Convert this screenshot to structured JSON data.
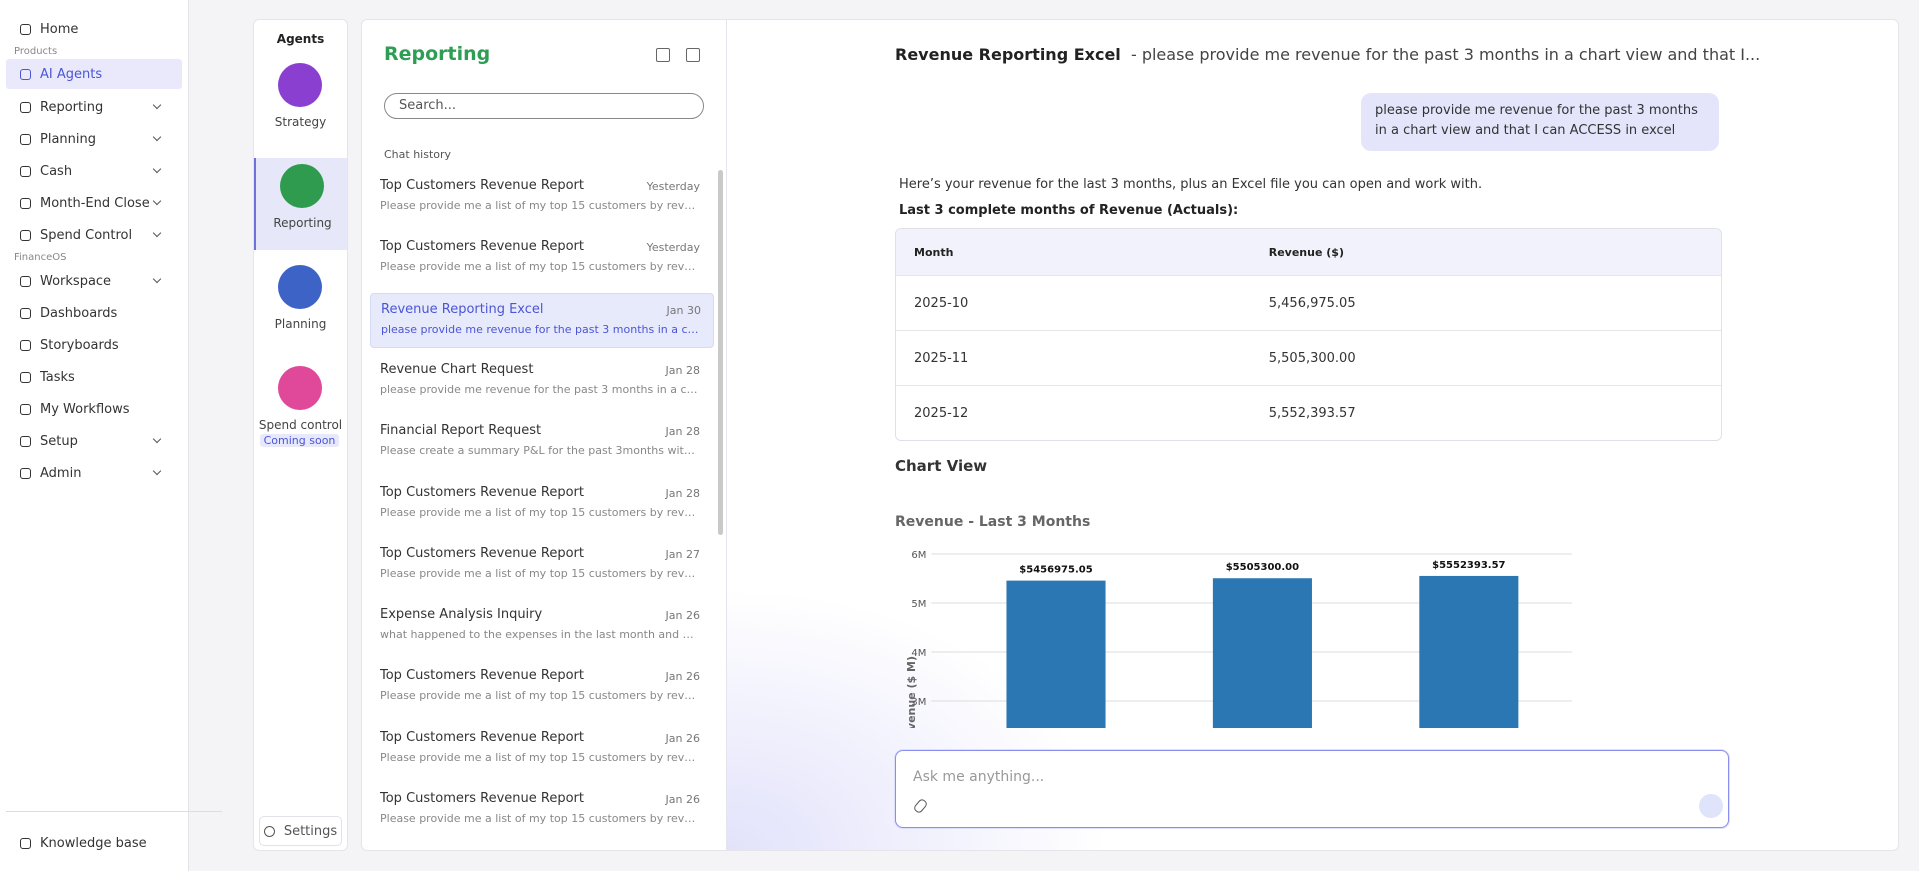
{
  "sidebar": {
    "nav": [
      {
        "label": "Home"
      },
      {
        "heading": "Products"
      },
      {
        "label": "AI Agents",
        "active": true
      },
      {
        "label": "Reporting",
        "expandable": true
      },
      {
        "label": "Planning",
        "expandable": true
      },
      {
        "label": "Cash",
        "expandable": true
      },
      {
        "label": "Month-End Close",
        "expandable": true
      },
      {
        "label": "Spend Control",
        "expandable": true
      },
      {
        "heading": "FinanceOS"
      },
      {
        "label": "Workspace",
        "expandable": true
      },
      {
        "label": "Dashboards"
      },
      {
        "label": "Storyboards"
      },
      {
        "label": "Tasks"
      },
      {
        "label": "My Workflows"
      },
      {
        "label": "Setup",
        "expandable": true
      },
      {
        "label": "Admin",
        "expandable": true
      }
    ],
    "footer": "Knowledge base"
  },
  "agents": {
    "title": "Agents",
    "items": [
      {
        "name": "Strategy"
      },
      {
        "name": "Reporting",
        "active": true
      },
      {
        "name": "Planning"
      },
      {
        "name": "Spend control",
        "badge": "Coming soon"
      }
    ],
    "settings": "Settings"
  },
  "chat_list": {
    "title": "Reporting",
    "search_placeholder": "Search...",
    "section": "Chat history",
    "chats": [
      {
        "title": "Top Customers Revenue Report",
        "date": "Yesterday",
        "preview": "Please provide me a list of my top 15 customers by reven…"
      },
      {
        "title": "Top Customers Revenue Report",
        "date": "Yesterday",
        "preview": "Please provide me a list of my top 15 customers by reven…"
      },
      {
        "title": "Revenue Reporting Excel",
        "date": "Jan 30",
        "preview": "please provide me revenue for the past 3 months in a ch…",
        "active": true
      },
      {
        "title": "Revenue Chart Request",
        "date": "Jan 28",
        "preview": "please provide me revenue for the past 3 months in a ch…"
      },
      {
        "title": "Financial Report Request",
        "date": "Jan 28",
        "preview": "Please create a summary P&L for the past 3months with …"
      },
      {
        "title": "Top Customers Revenue Report",
        "date": "Jan 28",
        "preview": "Please provide me a list of my top 15 customers by reven…"
      },
      {
        "title": "Top Customers Revenue Report",
        "date": "Jan 27",
        "preview": "Please provide me a list of my top 15 customers by reven…"
      },
      {
        "title": "Expense Analysis Inquiry",
        "date": "Jan 26",
        "preview": "what happened to the expenses in the last month and w…"
      },
      {
        "title": "Top Customers Revenue Report",
        "date": "Jan 26",
        "preview": "Please provide me a list of my top 15 customers by reven…"
      },
      {
        "title": "Top Customers Revenue Report",
        "date": "Jan 26",
        "preview": "Please provide me a list of my top 15 customers by reven…"
      },
      {
        "title": "Top Customers Revenue Report",
        "date": "Jan 26",
        "preview": "Please provide me a list of my top 15 customers by reven…"
      }
    ]
  },
  "conversation": {
    "title": "Revenue Reporting Excel",
    "subtitle": "- please provide me revenue for the past 3 months in a chart view and that I...",
    "user_message": "please provide me revenue for the past 3 months in a chart view and that I can ACCESS in excel",
    "reply": "Here’s your revenue for the last 3 months, plus an Excel file you can open and work with.",
    "table_heading": "Last 3 complete months of Revenue (Actuals):",
    "table": {
      "header": [
        "Month",
        "Revenue ($)"
      ],
      "rows": [
        [
          "2025-10",
          "5,456,975.05"
        ],
        [
          "2025-11",
          "5,505,300.00"
        ],
        [
          "2025-12",
          "5,552,393.57"
        ]
      ]
    },
    "chart_heading": "Chart View",
    "input_placeholder": "Ask me anything..."
  },
  "chart_data": {
    "type": "bar",
    "title": "Revenue - Last 3 Months",
    "y_label": "Revenue ($ M)",
    "values": [
      5.45697505,
      5.5053,
      5.55239357
    ],
    "value_labels": [
      "$5456975.05",
      "$5505300.00",
      "$5552393.57"
    ],
    "color": "#2b77b4",
    "ylim": [
      0,
      6
    ],
    "yticks": [
      {
        "value": 3,
        "label": "3M"
      },
      {
        "value": 4,
        "label": "4M"
      },
      {
        "value": 5,
        "label": "5M"
      },
      {
        "value": 6,
        "label": "6M"
      }
    ],
    "grid": true
  }
}
